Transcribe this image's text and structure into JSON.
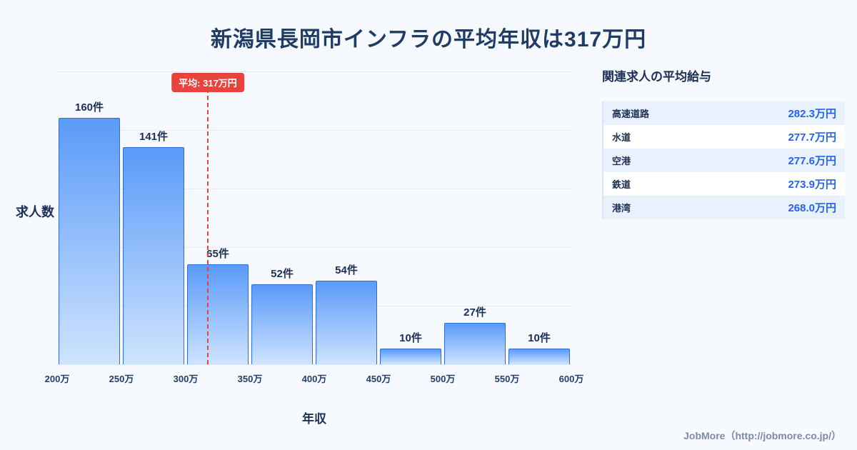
{
  "page": {
    "title": "新潟県長岡市インフラの平均年収は317万円",
    "footer": "JobMore（http://jobmore.co.jp/）"
  },
  "chart_data": {
    "type": "bar",
    "title": "新潟県長岡市インフラの平均年収は317万円",
    "xlabel": "年収",
    "ylabel": "求人数",
    "x_tick_labels": [
      "200万",
      "250万",
      "300万",
      "350万",
      "400万",
      "450万",
      "500万",
      "550万",
      "600万"
    ],
    "bin_edges": [
      200,
      250,
      300,
      350,
      400,
      450,
      500,
      550,
      600
    ],
    "values": [
      160,
      141,
      65,
      52,
      54,
      10,
      27,
      10
    ],
    "value_labels": [
      "160件",
      "141件",
      "65件",
      "52件",
      "54件",
      "10件",
      "27件",
      "10件"
    ],
    "ylim": [
      0,
      190
    ],
    "x_range": [
      200,
      600
    ],
    "grid": true,
    "legend": "none",
    "average": {
      "value": 317,
      "label": "平均: 317万円"
    }
  },
  "side_panel": {
    "heading": "関連求人の平均給与",
    "items": [
      {
        "label": "高速道路",
        "value": "282.3万円"
      },
      {
        "label": "水道",
        "value": "277.7万円"
      },
      {
        "label": "空港",
        "value": "277.6万円"
      },
      {
        "label": "鉄道",
        "value": "273.9万円"
      },
      {
        "label": "港湾",
        "value": "268.0万円"
      }
    ]
  },
  "colors": {
    "background": "#f6f9fe",
    "title_navy": "#1f3c64",
    "bar_top": "#5a9af8",
    "bar_bottom": "#cfe4fe",
    "bar_border": "#2d6fd9",
    "average_red": "#e8433c",
    "accent_blue": "#2563eb"
  }
}
